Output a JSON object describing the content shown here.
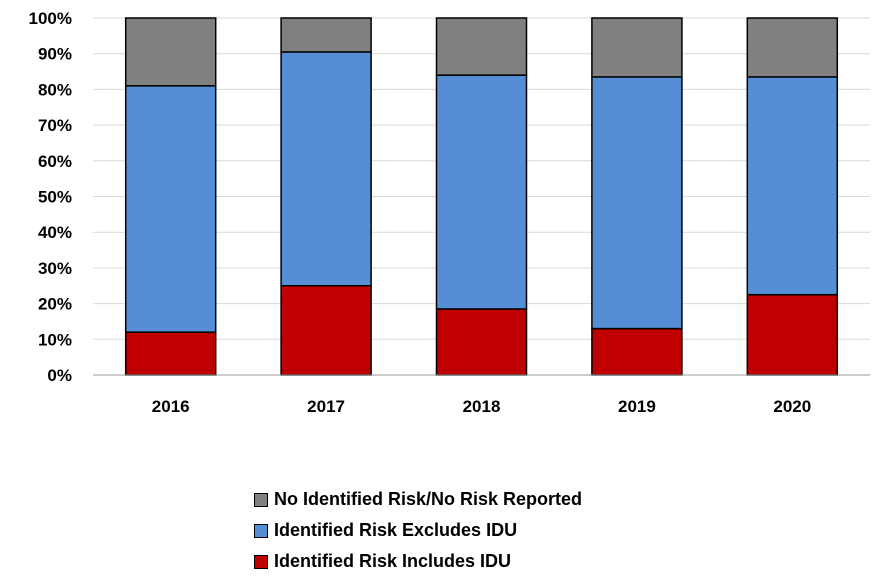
{
  "chart_data": {
    "type": "bar",
    "stacked": true,
    "categories": [
      "2016",
      "2017",
      "2018",
      "2019",
      "2020"
    ],
    "series": [
      {
        "name": "Identified Risk Includes IDU",
        "color": "#C00000",
        "values": [
          12,
          25,
          18.5,
          13,
          22.5
        ]
      },
      {
        "name": "Identified Risk Excludes IDU",
        "color": "#558ED5",
        "values": [
          69,
          65.5,
          65.5,
          70.5,
          61
        ]
      },
      {
        "name": "No Identified Risk/No Risk Reported",
        "color": "#808080",
        "values": [
          19,
          9.5,
          16,
          16.5,
          16.5
        ]
      }
    ],
    "ylim": [
      0,
      100
    ],
    "yticks": [
      "0%",
      "10%",
      "20%",
      "30%",
      "40%",
      "50%",
      "60%",
      "70%",
      "80%",
      "90%",
      "100%"
    ],
    "grid": true,
    "legend_position": "bottom",
    "legend_order": [
      "No Identified Risk/No Risk Reported",
      "Identified Risk Excludes IDU",
      "Identified Risk Includes IDU"
    ]
  }
}
